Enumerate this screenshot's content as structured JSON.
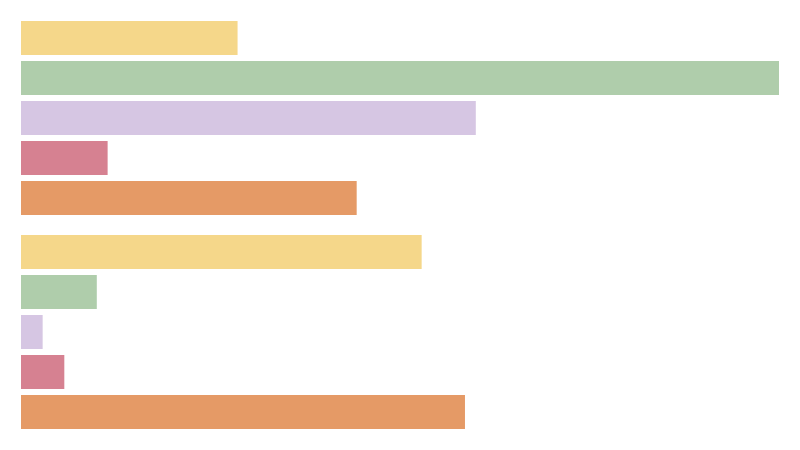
{
  "chart_data": {
    "type": "bar",
    "orientation": "horizontal",
    "title": "",
    "xlabel": "",
    "ylabel": "",
    "grid": false,
    "legend": "none",
    "xlim": [
      0,
      35
    ],
    "groups": [
      {
        "bars": [
          {
            "value": 10.0,
            "color": "#f5d78a"
          },
          {
            "value": 35.0,
            "color": "#afcdab"
          },
          {
            "value": 21.0,
            "color": "#d6c6e3"
          },
          {
            "value": 4.0,
            "color": "#d68191"
          },
          {
            "value": 15.5,
            "color": "#e59a66"
          }
        ]
      },
      {
        "bars": [
          {
            "value": 18.5,
            "color": "#f5d78a"
          },
          {
            "value": 3.5,
            "color": "#afcdab"
          },
          {
            "value": 1.0,
            "color": "#d6c6e3"
          },
          {
            "value": 2.0,
            "color": "#d68191"
          },
          {
            "value": 20.5,
            "color": "#e59a66"
          }
        ]
      }
    ]
  }
}
